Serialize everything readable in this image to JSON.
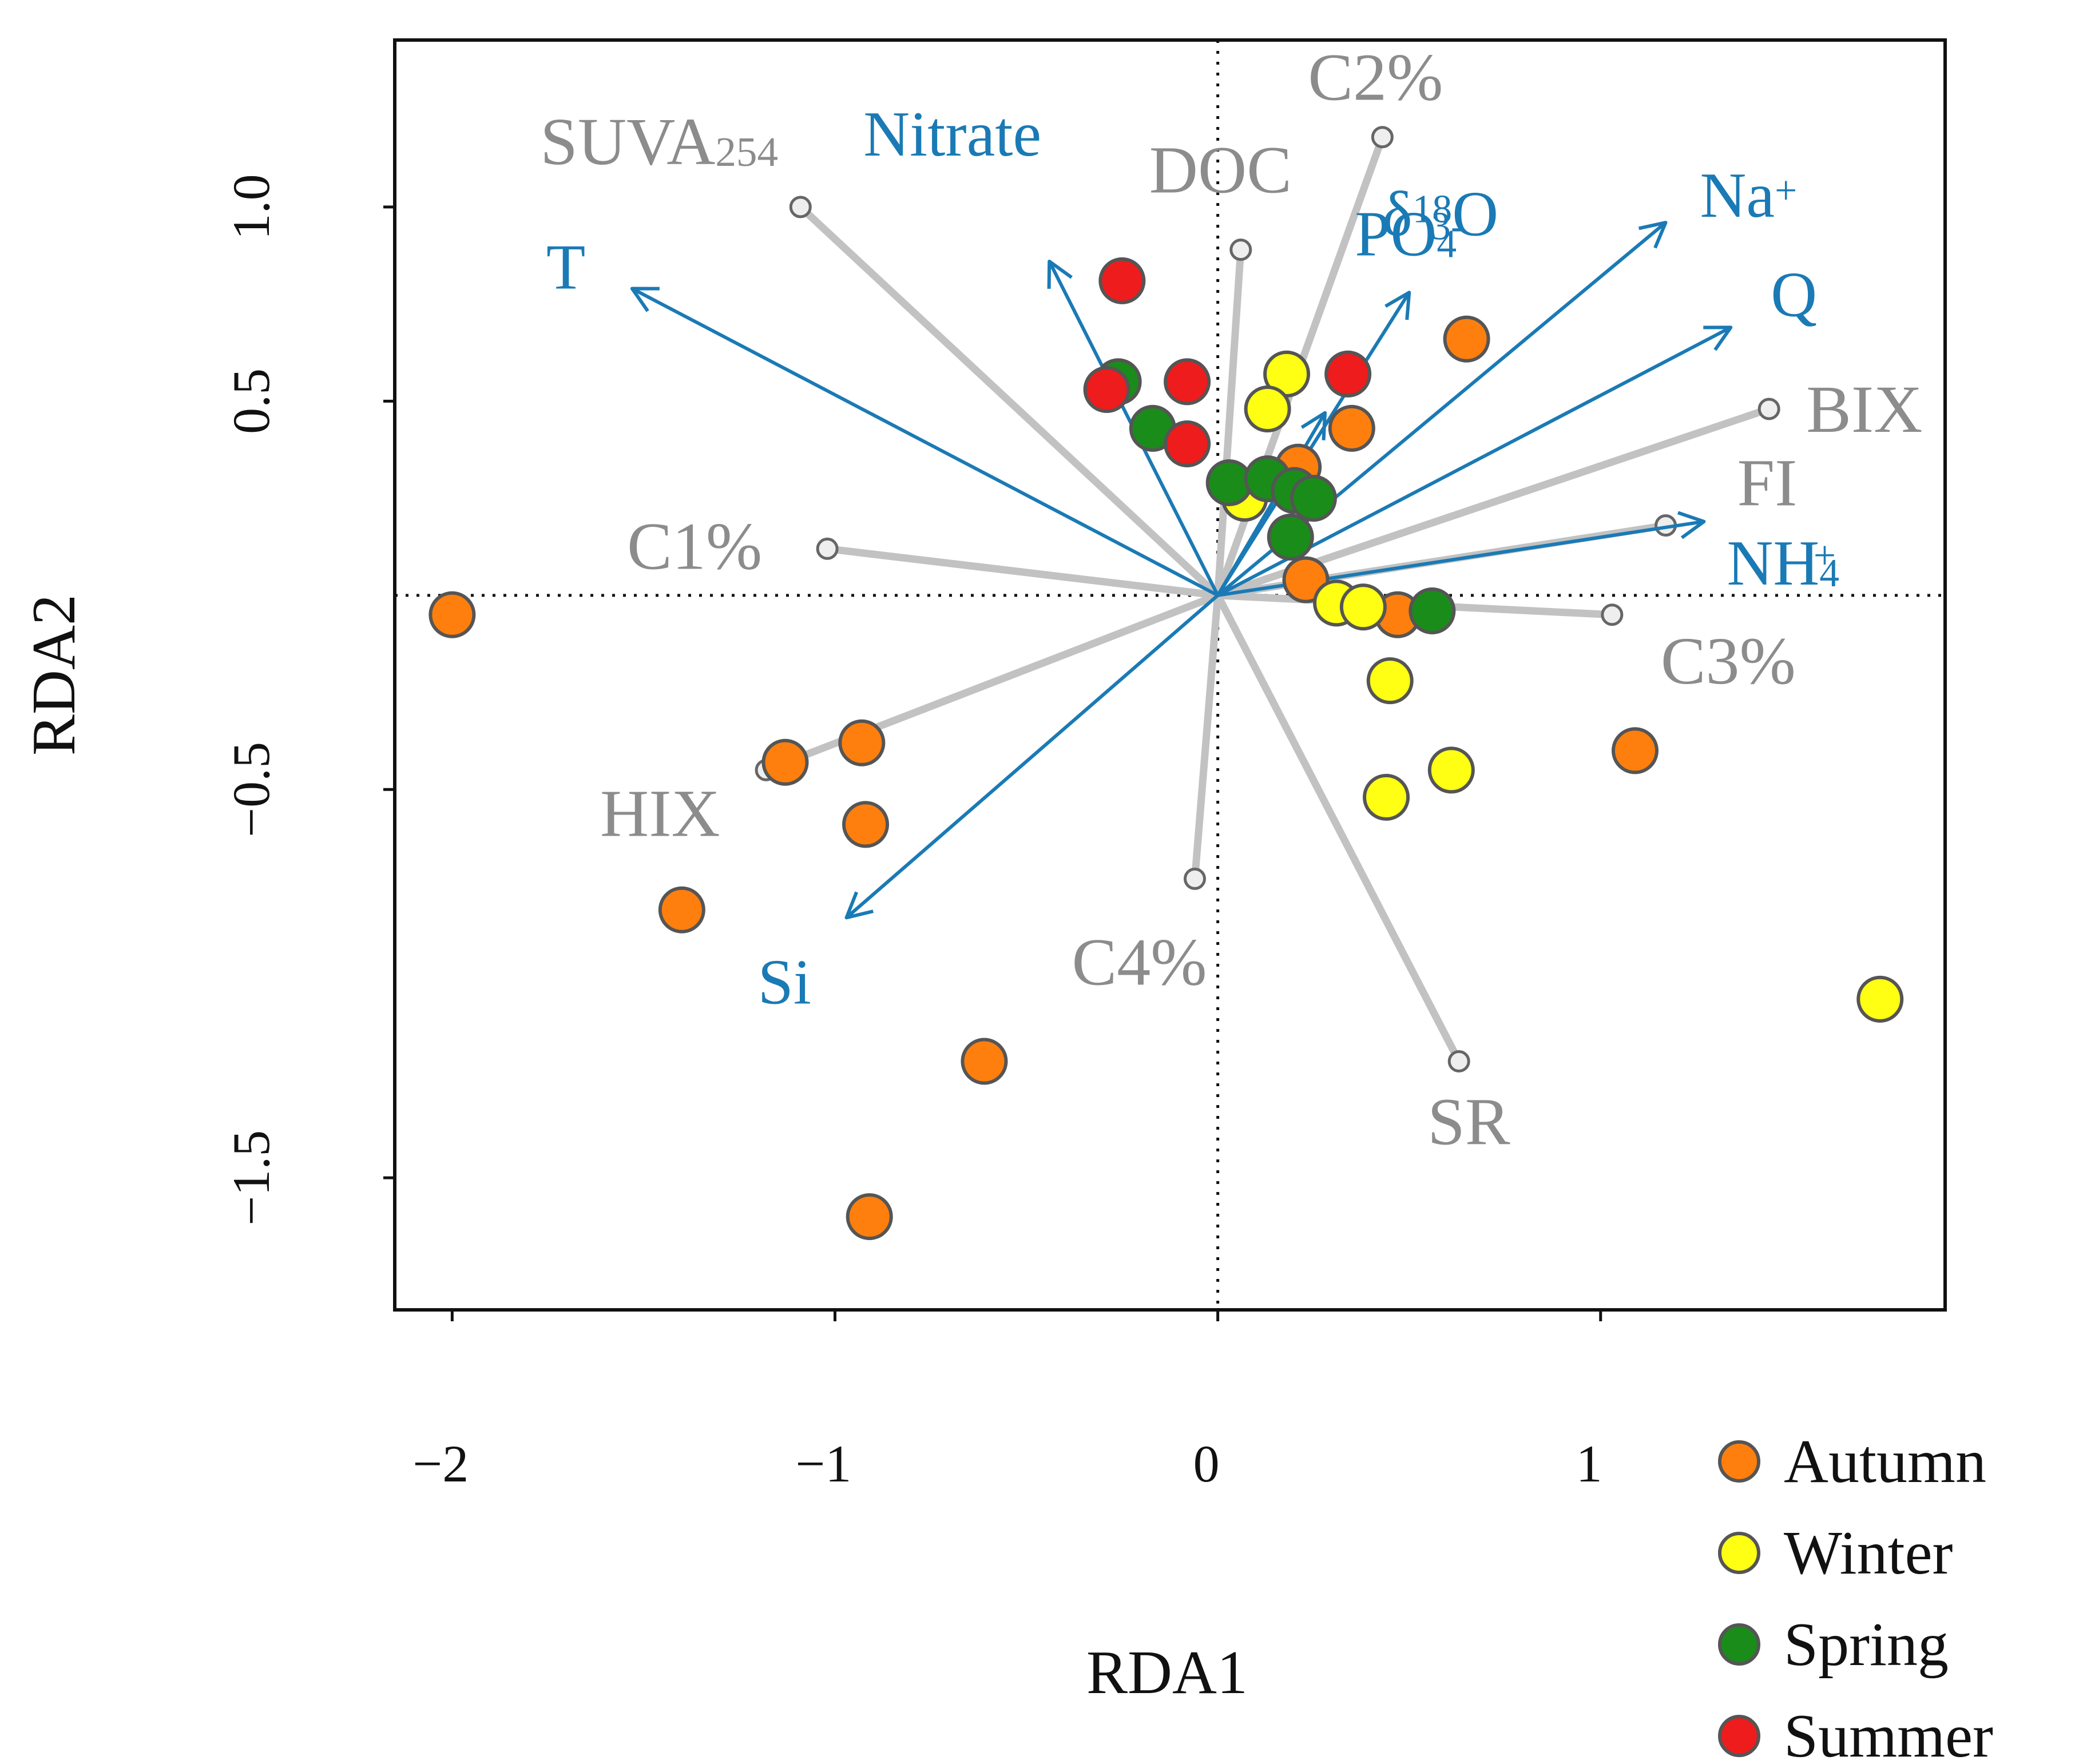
{
  "chart_data": {
    "type": "scatter",
    "xlabel": "RDA1",
    "ylabel": "RDA2",
    "x_ticks": [
      "−2",
      "−1",
      "0",
      "1"
    ],
    "y_ticks": [
      "1.0",
      "0.5",
      "−0.5",
      "−1.5"
    ],
    "x_tick_values": [
      -2,
      -1,
      0,
      1
    ],
    "y_tick_values": [
      1.0,
      0.5,
      -0.5,
      -1.5
    ],
    "xlim": [
      -2.15,
      1.9
    ],
    "ylim": [
      -1.84,
      1.43
    ],
    "reference_lines": {
      "x": 0,
      "y": 0,
      "style": "dotted"
    },
    "legend": {
      "placement": "bottom-right-outside",
      "entries": [
        {
          "name": "Autumn",
          "color": "#ff7f0e"
        },
        {
          "name": "Winter",
          "color": "#ffff14"
        },
        {
          "name": "Spring",
          "color": "#1a8c1a"
        },
        {
          "name": "Summer",
          "color": "#ee1c1c"
        }
      ]
    },
    "series": [
      {
        "name": "Autumn",
        "color": "#ff7f0e",
        "points": [
          [
            -2.0,
            -0.05
          ],
          [
            -1.13,
            -0.43
          ],
          [
            -0.93,
            -0.38
          ],
          [
            -0.92,
            -0.59
          ],
          [
            -1.4,
            -0.81
          ],
          [
            -0.61,
            -1.2
          ],
          [
            -0.91,
            -1.6
          ],
          [
            0.21,
            0.33
          ],
          [
            0.35,
            0.43
          ],
          [
            0.65,
            0.66
          ],
          [
            0.23,
            0.04
          ],
          [
            0.47,
            -0.05
          ],
          [
            1.09,
            -0.4
          ]
        ]
      },
      {
        "name": "Winter",
        "color": "#ffff14",
        "points": [
          [
            0.18,
            0.57
          ],
          [
            0.13,
            0.48
          ],
          [
            0.07,
            0.25
          ],
          [
            0.31,
            -0.02
          ],
          [
            0.38,
            -0.03
          ],
          [
            0.45,
            -0.22
          ],
          [
            0.61,
            -0.45
          ],
          [
            0.44,
            -0.52
          ],
          [
            1.73,
            -1.04
          ]
        ]
      },
      {
        "name": "Spring",
        "color": "#1a8c1a",
        "points": [
          [
            -0.26,
            0.55
          ],
          [
            -0.17,
            0.43
          ],
          [
            0.03,
            0.29
          ],
          [
            0.13,
            0.3
          ],
          [
            0.2,
            0.27
          ],
          [
            0.25,
            0.25
          ],
          [
            0.19,
            0.15
          ],
          [
            0.56,
            -0.04
          ]
        ]
      },
      {
        "name": "Summer",
        "color": "#ee1c1c",
        "points": [
          [
            -0.25,
            0.81
          ],
          [
            -0.29,
            0.53
          ],
          [
            -0.08,
            0.55
          ],
          [
            -0.08,
            0.39
          ],
          [
            0.34,
            0.57
          ]
        ]
      }
    ],
    "response_vectors": [
      {
        "label": "SUVA",
        "label_sub": "254",
        "x": -1.09,
        "y": 1.0
      },
      {
        "label": "DOC",
        "label_sub": "",
        "x": 0.06,
        "y": 0.89
      },
      {
        "label": "C2%",
        "label_sub": "",
        "x": 0.43,
        "y": 1.18
      },
      {
        "label": "BIX",
        "label_sub": "",
        "x": 1.44,
        "y": 0.48
      },
      {
        "label": "FI",
        "label_sub": "",
        "x": 1.17,
        "y": 0.18
      },
      {
        "label": "C3%",
        "label_sub": "",
        "x": 1.03,
        "y": -0.05
      },
      {
        "label": "C1%",
        "label_sub": "",
        "x": -1.02,
        "y": 0.12
      },
      {
        "label": "HIX",
        "label_sub": "",
        "x": -1.18,
        "y": -0.45
      },
      {
        "label": "C4%",
        "label_sub": "",
        "x": -0.06,
        "y": -0.73
      },
      {
        "label": "SR",
        "label_sub": "",
        "x": 0.63,
        "y": -1.2
      }
    ],
    "explanatory_vectors": [
      {
        "label": "T",
        "sup": "",
        "sub": "",
        "x": -1.53,
        "y": 0.79
      },
      {
        "label": "Nitrate",
        "sup": "",
        "sub": "",
        "x": -0.44,
        "y": 0.86
      },
      {
        "label": "PO",
        "sup": "3-",
        "sub": "4",
        "x": 0.5,
        "y": 0.78
      },
      {
        "label": "δ",
        "sup": "18",
        "sub": "",
        "label_tail": "O",
        "x": 0.28,
        "y": 0.47
      },
      {
        "label": "Na",
        "sup": "+",
        "sub": "",
        "x": 1.17,
        "y": 0.96
      },
      {
        "label": "Q",
        "sup": "",
        "sub": "",
        "x": 1.34,
        "y": 0.69
      },
      {
        "label": "NH",
        "sup": "+",
        "sub": "4",
        "x": 1.27,
        "y": 0.19
      },
      {
        "label": "Si",
        "sup": "",
        "sub": "",
        "x": -0.97,
        "y": -0.83
      }
    ]
  }
}
